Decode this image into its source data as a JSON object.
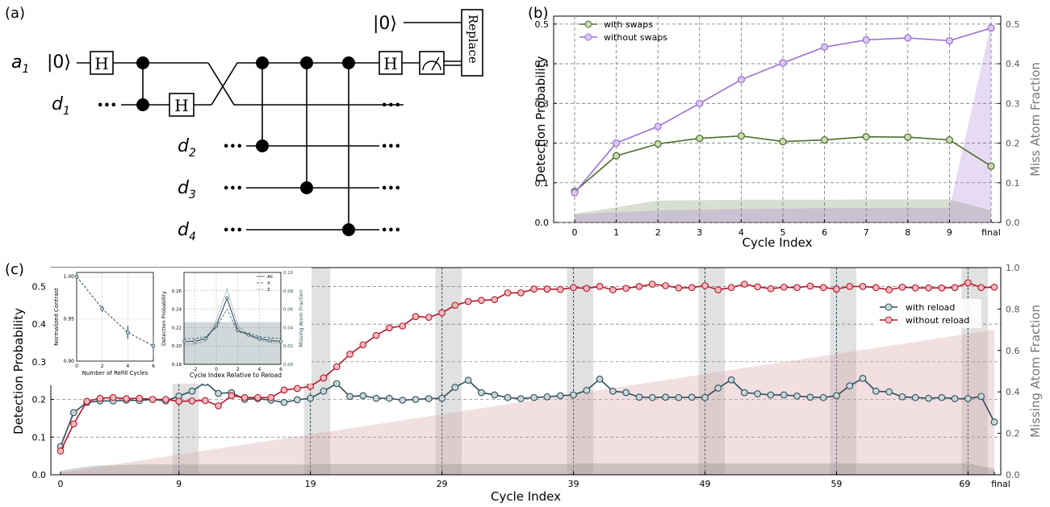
{
  "panel_labels": {
    "a": "(a)",
    "b": "(b)",
    "c": "(c)"
  },
  "circuit": {
    "qubits": [
      {
        "name": "a",
        "sub": "1"
      },
      {
        "name": "d",
        "sub": "1"
      },
      {
        "name": "d",
        "sub": "2"
      },
      {
        "name": "d",
        "sub": "3"
      },
      {
        "name": "d",
        "sub": "4"
      }
    ],
    "ket": "|0⟩",
    "ket_top": "|0⟩",
    "gate_h": "H",
    "ellipsis": "•••",
    "replace_label": "Replace"
  },
  "colors": {
    "with_swaps": "#4f6b2e",
    "without_swaps": "#9b6fcf",
    "with_reload": "#2f4e5a",
    "without_reload": "#b2182b",
    "miss_fill": "#9e9e9e"
  },
  "chart_data": [
    {
      "id": "b",
      "type": "line",
      "xlabel": "Cycle Index",
      "ylabel": "Detection Probability",
      "ylabel_right": "Miss Atom Fraction",
      "categories": [
        "0",
        "1",
        "2",
        "3",
        "4",
        "5",
        "6",
        "7",
        "8",
        "9",
        "final"
      ],
      "ylim": [
        0,
        0.52
      ],
      "yticks": [
        "0.0",
        "0.1",
        "0.2",
        "0.3",
        "0.4",
        "0.5"
      ],
      "ylim_right": [
        0,
        0.52
      ],
      "yticks_right": [
        "0.0",
        "0.1",
        "0.2",
        "0.3",
        "0.4",
        "0.5"
      ],
      "legend_position": "top-left",
      "grid": true,
      "series": [
        {
          "name": "with swaps",
          "values": [
            0.078,
            0.168,
            0.198,
            0.212,
            0.218,
            0.204,
            0.208,
            0.216,
            0.215,
            0.208,
            0.142
          ]
        },
        {
          "name": "without swaps",
          "values": [
            0.075,
            0.2,
            0.242,
            0.3,
            0.36,
            0.402,
            0.442,
            0.46,
            0.465,
            0.458,
            0.49
          ]
        }
      ],
      "miss_fraction": {
        "with_swaps": [
          0.022,
          0.038,
          0.055,
          0.056,
          0.057,
          0.057,
          0.057,
          0.058,
          0.058,
          0.058,
          0.03
        ],
        "without_swaps": [
          0.02,
          0.026,
          0.03,
          0.032,
          0.034,
          0.035,
          0.036,
          0.036,
          0.037,
          0.037,
          0.5
        ]
      }
    },
    {
      "id": "c",
      "type": "line",
      "xlabel": "Cycle Index",
      "ylabel": "Detection Probability",
      "ylabel_right": "Missing Atom Fraction",
      "x_ticks": [
        "0",
        "9",
        "19",
        "29",
        "39",
        "49",
        "59",
        "69",
        "final"
      ],
      "reload_cycles": [
        9,
        19,
        29,
        39,
        49,
        59,
        69
      ],
      "ylim": [
        0,
        0.55
      ],
      "yticks": [
        "0.0",
        "0.1",
        "0.2",
        "0.3",
        "0.4",
        "0.5"
      ],
      "ylim_right": [
        0,
        1.0
      ],
      "yticks_right": [
        "0.0",
        "0.2",
        "0.4",
        "0.6",
        "0.8",
        "1.0"
      ],
      "legend_position": "right",
      "series": [
        {
          "name": "with reload",
          "values": [
            0.075,
            0.165,
            0.192,
            0.196,
            0.196,
            0.198,
            0.197,
            0.2,
            0.196,
            0.209,
            0.222,
            0.245,
            0.216,
            0.218,
            0.2,
            0.202,
            0.198,
            0.192,
            0.199,
            0.203,
            0.222,
            0.242,
            0.208,
            0.21,
            0.203,
            0.203,
            0.198,
            0.2,
            0.202,
            0.203,
            0.232,
            0.251,
            0.218,
            0.212,
            0.205,
            0.202,
            0.205,
            0.207,
            0.21,
            0.212,
            0.224,
            0.254,
            0.222,
            0.218,
            0.206,
            0.205,
            0.206,
            0.205,
            0.206,
            0.205,
            0.23,
            0.252,
            0.218,
            0.215,
            0.212,
            0.212,
            0.209,
            0.206,
            0.205,
            0.21,
            0.236,
            0.256,
            0.222,
            0.22,
            0.207,
            0.205,
            0.203,
            0.205,
            0.202,
            0.202,
            0.208,
            0.14
          ]
        },
        {
          "name": "without reload",
          "values": [
            0.063,
            0.135,
            0.195,
            0.203,
            0.205,
            0.202,
            0.203,
            0.2,
            0.2,
            0.195,
            0.196,
            0.197,
            0.183,
            0.21,
            0.205,
            0.205,
            0.205,
            0.225,
            0.229,
            0.235,
            0.257,
            0.287,
            0.32,
            0.345,
            0.37,
            0.39,
            0.395,
            0.42,
            0.418,
            0.43,
            0.45,
            0.46,
            0.463,
            0.465,
            0.483,
            0.483,
            0.493,
            0.493,
            0.492,
            0.497,
            0.495,
            0.5,
            0.491,
            0.495,
            0.5,
            0.506,
            0.502,
            0.496,
            0.497,
            0.502,
            0.491,
            0.497,
            0.506,
            0.499,
            0.494,
            0.498,
            0.497,
            0.501,
            0.497,
            0.493,
            0.5,
            0.5,
            0.497,
            0.491,
            0.498,
            0.496,
            0.496,
            0.496,
            0.497,
            0.51,
            0.497,
            0.498
          ]
        }
      ],
      "miss_fraction": {
        "with_reload": [
          0.02,
          0.03,
          0.04,
          0.045,
          0.045,
          0.048,
          0.05,
          0.05,
          0.05,
          0.05,
          0.05,
          0.05,
          0.05,
          0.05,
          0.05,
          0.05,
          0.05,
          0.05,
          0.05,
          0.05,
          0.052,
          0.052,
          0.052,
          0.052,
          0.052,
          0.052,
          0.052,
          0.052,
          0.052,
          0.052,
          0.052,
          0.052,
          0.052,
          0.052,
          0.052,
          0.052,
          0.052,
          0.052,
          0.052,
          0.052,
          0.055,
          0.055,
          0.055,
          0.055,
          0.055,
          0.055,
          0.055,
          0.055,
          0.055,
          0.055,
          0.055,
          0.055,
          0.055,
          0.055,
          0.055,
          0.055,
          0.055,
          0.055,
          0.055,
          0.055,
          0.055,
          0.055,
          0.055,
          0.055,
          0.055,
          0.055,
          0.055,
          0.055,
          0.055,
          0.055,
          0.04,
          0.03
        ],
        "without_reload_end": 0.7
      }
    },
    {
      "id": "c-inset-1",
      "type": "scatter",
      "xlabel": "Number of Refill Cycles",
      "ylabel": "Normalized Contrast",
      "x": [
        0,
        2,
        4,
        6
      ],
      "y": [
        1.0,
        0.962,
        0.934,
        0.918
      ],
      "error": [
        0.0,
        0.004,
        0.008,
        0.012
      ],
      "xlim": [
        0,
        6
      ],
      "ylim": [
        0.9,
        1.005
      ],
      "xticks": [
        "0",
        "2",
        "4",
        "6"
      ],
      "yticks": [
        "0.90",
        "0.95",
        "1.00"
      ]
    },
    {
      "id": "c-inset-2",
      "type": "line",
      "xlabel": "Cycle Index Relative to Reload",
      "ylabel": "Detection Probability",
      "ylabel_right": "Missing Atom Fraction",
      "x": [
        -3,
        -2,
        -1,
        0,
        1,
        2,
        3,
        4,
        5,
        6
      ],
      "xticks": [
        "-2",
        "0",
        "2",
        "4",
        "6"
      ],
      "ylim": [
        0.18,
        0.28
      ],
      "yticks": [
        "0.18",
        "0.20",
        "0.22",
        "0.24",
        "0.26"
      ],
      "ylim_right": [
        0.0,
        0.1
      ],
      "yticks_right": [
        "0.00",
        "0.02",
        "0.04",
        "0.06",
        "0.08",
        "0.10"
      ],
      "series": [
        {
          "name": "All",
          "values": [
            0.205,
            0.205,
            0.208,
            0.222,
            0.252,
            0.217,
            0.212,
            0.208,
            0.206,
            0.205
          ]
        },
        {
          "name": "X",
          "values": [
            0.208,
            0.208,
            0.21,
            0.22,
            0.24,
            0.215,
            0.214,
            0.21,
            0.209,
            0.208
          ]
        },
        {
          "name": "Z",
          "values": [
            0.202,
            0.202,
            0.205,
            0.228,
            0.262,
            0.222,
            0.212,
            0.206,
            0.204,
            0.203
          ]
        }
      ]
    }
  ]
}
